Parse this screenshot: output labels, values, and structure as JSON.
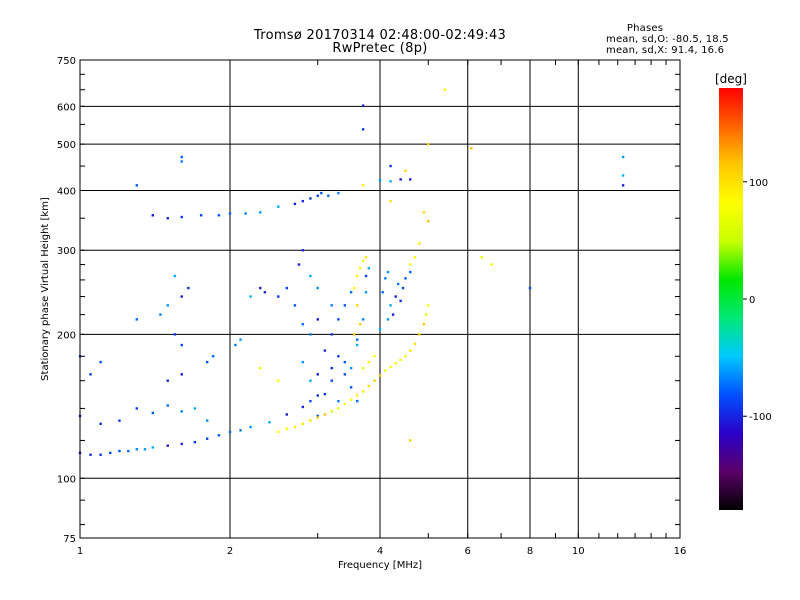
{
  "title": {
    "line1": "Tromsø 20170314 02:48:00-02:49:43",
    "line2": "RwPretec (8p)"
  },
  "phases_box": {
    "title": "Phases",
    "line_o": "mean, sd,O: -80.5, 18.5",
    "line_x": "mean, sd,X:  91.4, 16.6"
  },
  "colorbar": {
    "label": "[deg]",
    "ticks": [
      {
        "value": 100,
        "label": "100"
      },
      {
        "value": 0,
        "label": "0"
      },
      {
        "value": -100,
        "label": "-100"
      }
    ],
    "range": [
      -180,
      180
    ],
    "colors": [
      "#000000",
      "#5a0068",
      "#2a00c8",
      "#0050ff",
      "#00c8ff",
      "#00e878",
      "#00e800",
      "#c8ff00",
      "#ffff00",
      "#ffc800",
      "#ff6400",
      "#ff0000"
    ]
  },
  "chart_data": {
    "type": "scatter",
    "title": "Tromsø 20170314 02:48:00-02:49:43",
    "subtitle": "RwPretec (8p)",
    "xlabel": "Frequency [MHz]",
    "ylabel": "Stationary phase Virtual Height [km]",
    "xscale": "log",
    "yscale": "log",
    "xlim": [
      1,
      16
    ],
    "ylim": [
      75,
      750
    ],
    "xticks": [
      1,
      2,
      4,
      6,
      8,
      10,
      16
    ],
    "yticks": [
      75,
      100,
      200,
      300,
      400,
      500,
      600,
      750
    ],
    "colorbar_label": "[deg]",
    "grid": true,
    "series": [
      {
        "name": "O",
        "phase_mean_deg": -80.5,
        "points": [
          [
            1.0,
            113
          ],
          [
            1.05,
            112
          ],
          [
            1.1,
            112
          ],
          [
            1.15,
            113
          ],
          [
            1.2,
            114
          ],
          [
            1.25,
            114
          ],
          [
            1.3,
            115
          ],
          [
            1.35,
            115
          ],
          [
            1.4,
            116
          ],
          [
            1.5,
            117
          ],
          [
            1.6,
            118
          ],
          [
            1.7,
            119
          ],
          [
            1.8,
            121
          ],
          [
            1.9,
            123
          ],
          [
            2.0,
            125
          ],
          [
            2.1,
            126
          ],
          [
            2.2,
            128
          ],
          [
            2.4,
            131
          ],
          [
            2.6,
            136
          ],
          [
            2.8,
            141
          ],
          [
            3.0,
            149
          ],
          [
            3.2,
            160
          ],
          [
            3.4,
            175
          ],
          [
            3.6,
            195
          ],
          [
            3.7,
            215
          ],
          [
            3.75,
            245
          ],
          [
            3.8,
            275
          ],
          [
            1.0,
            135
          ],
          [
            1.1,
            130
          ],
          [
            1.2,
            132
          ],
          [
            1.3,
            140
          ],
          [
            1.4,
            137
          ],
          [
            1.5,
            142
          ],
          [
            1.6,
            138
          ],
          [
            1.8,
            132
          ],
          [
            1.7,
            140
          ],
          [
            1.6,
            165
          ],
          [
            1.5,
            160
          ],
          [
            1.05,
            165
          ],
          [
            1.0,
            180
          ],
          [
            1.1,
            175
          ],
          [
            1.3,
            215
          ],
          [
            1.45,
            220
          ],
          [
            1.5,
            230
          ],
          [
            1.55,
            265
          ],
          [
            1.6,
            240
          ],
          [
            1.65,
            250
          ],
          [
            1.55,
            200
          ],
          [
            1.6,
            190
          ],
          [
            1.8,
            175
          ],
          [
            1.85,
            180
          ],
          [
            2.05,
            190
          ],
          [
            2.1,
            195
          ],
          [
            2.2,
            240
          ],
          [
            2.3,
            250
          ],
          [
            2.35,
            245
          ],
          [
            2.5,
            240
          ],
          [
            2.6,
            250
          ],
          [
            2.7,
            230
          ],
          [
            2.8,
            210
          ],
          [
            2.9,
            200
          ],
          [
            2.8,
            175
          ],
          [
            2.9,
            160
          ],
          [
            3.0,
            165
          ],
          [
            3.1,
            185
          ],
          [
            3.2,
            200
          ],
          [
            3.3,
            215
          ],
          [
            3.4,
            230
          ],
          [
            3.5,
            245
          ],
          [
            3.2,
            230
          ],
          [
            3.0,
            250
          ],
          [
            2.9,
            265
          ],
          [
            2.75,
            280
          ],
          [
            2.8,
            300
          ],
          [
            3.3,
            180
          ],
          [
            3.4,
            165
          ],
          [
            3.5,
            155
          ],
          [
            3.6,
            145
          ],
          [
            3.3,
            145
          ],
          [
            3.5,
            170
          ],
          [
            3.6,
            190
          ],
          [
            3.0,
            215
          ],
          [
            3.2,
            170
          ],
          [
            3.1,
            150
          ],
          [
            2.9,
            145
          ],
          [
            3.0,
            135
          ],
          [
            4.05,
            245
          ],
          [
            4.1,
            262
          ],
          [
            4.15,
            270
          ],
          [
            4.2,
            230
          ],
          [
            4.25,
            220
          ],
          [
            4.3,
            240
          ],
          [
            4.4,
            235
          ],
          [
            4.45,
            250
          ],
          [
            4.5,
            262
          ],
          [
            4.6,
            270
          ],
          [
            4.35,
            255
          ],
          [
            4.15,
            215
          ],
          [
            4.0,
            205
          ],
          [
            1.4,
            355
          ],
          [
            1.5,
            350
          ],
          [
            1.6,
            352
          ],
          [
            1.75,
            355
          ],
          [
            1.9,
            355
          ],
          [
            2.0,
            358
          ],
          [
            2.15,
            358
          ],
          [
            2.3,
            360
          ],
          [
            2.5,
            370
          ],
          [
            2.7,
            375
          ],
          [
            2.8,
            380
          ],
          [
            2.9,
            385
          ],
          [
            3.0,
            390
          ],
          [
            3.05,
            395
          ],
          [
            3.15,
            390
          ],
          [
            3.3,
            395
          ],
          [
            4.0,
            420
          ],
          [
            4.2,
            418
          ],
          [
            4.4,
            422
          ],
          [
            4.6,
            422
          ],
          [
            4.2,
            450
          ],
          [
            3.75,
            265
          ],
          [
            1.3,
            410
          ],
          [
            1.6,
            470
          ],
          [
            1.6,
            460
          ],
          [
            12.3,
            470
          ],
          [
            12.3,
            430
          ],
          [
            12.3,
            410
          ],
          [
            3.7,
            602
          ],
          [
            3.7,
            537
          ],
          [
            8.0,
            250
          ]
        ]
      },
      {
        "name": "X",
        "phase_mean_deg": 91.4,
        "points": [
          [
            2.5,
            125
          ],
          [
            2.6,
            127
          ],
          [
            2.7,
            128
          ],
          [
            2.8,
            130
          ],
          [
            2.9,
            132
          ],
          [
            3.0,
            134
          ],
          [
            3.1,
            136
          ],
          [
            3.2,
            138
          ],
          [
            3.3,
            140
          ],
          [
            3.4,
            143
          ],
          [
            3.5,
            146
          ],
          [
            3.6,
            149
          ],
          [
            3.7,
            152
          ],
          [
            3.8,
            156
          ],
          [
            3.9,
            160
          ],
          [
            4.0,
            164
          ],
          [
            4.1,
            168
          ],
          [
            4.2,
            171
          ],
          [
            4.3,
            174
          ],
          [
            4.4,
            177
          ],
          [
            4.5,
            180
          ],
          [
            4.6,
            185
          ],
          [
            4.7,
            191
          ],
          [
            4.8,
            200
          ],
          [
            4.9,
            210
          ],
          [
            4.95,
            220
          ],
          [
            5.0,
            230
          ],
          [
            3.6,
            265
          ],
          [
            3.65,
            275
          ],
          [
            3.7,
            285
          ],
          [
            3.75,
            290
          ],
          [
            3.6,
            230
          ],
          [
            3.65,
            210
          ],
          [
            3.55,
            200
          ],
          [
            3.7,
            170
          ],
          [
            3.8,
            175
          ],
          [
            3.9,
            180
          ],
          [
            4.7,
            290
          ],
          [
            4.6,
            280
          ],
          [
            4.8,
            310
          ],
          [
            4.9,
            360
          ],
          [
            5.0,
            500
          ],
          [
            6.1,
            490
          ],
          [
            6.4,
            290
          ],
          [
            6.7,
            280
          ],
          [
            5.4,
            650
          ],
          [
            3.55,
            250
          ],
          [
            3.7,
            410
          ],
          [
            4.2,
            380
          ],
          [
            4.5,
            440
          ],
          [
            4.6,
            120
          ],
          [
            5.0,
            345
          ],
          [
            2.3,
            170
          ],
          [
            2.5,
            160
          ]
        ]
      }
    ]
  }
}
